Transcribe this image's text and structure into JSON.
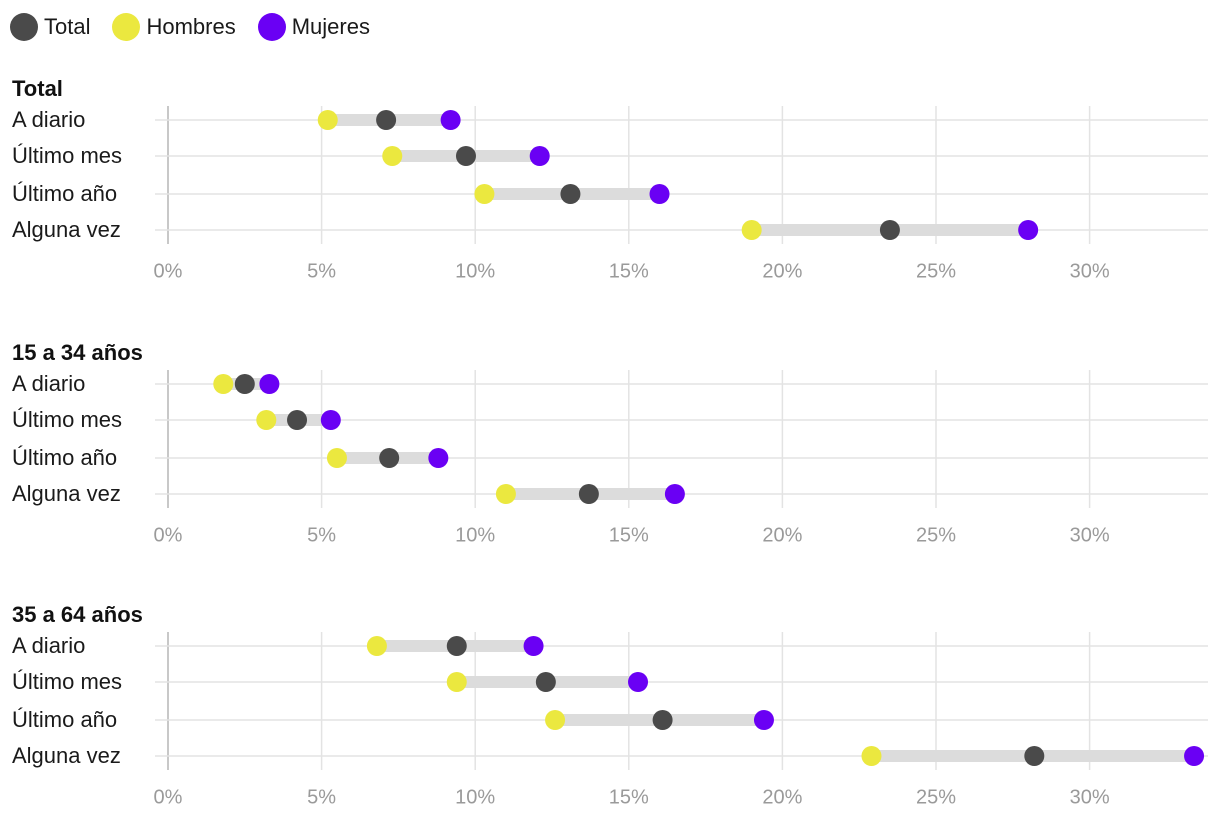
{
  "legend": [
    {
      "label": "Total",
      "color": "#4a4a4a"
    },
    {
      "label": "Hombres",
      "color": "#ebe83f"
    },
    {
      "label": "Mujeres",
      "color": "#6a00f4"
    }
  ],
  "chart_data": {
    "type": "dumbbell",
    "series": [
      {
        "name": "Total",
        "color": "#4a4a4a"
      },
      {
        "name": "Hombres",
        "color": "#ebe83f"
      },
      {
        "name": "Mujeres",
        "color": "#6a00f4"
      }
    ],
    "x_ticks": [
      "0%",
      "5%",
      "10%",
      "15%",
      "20%",
      "25%",
      "30%"
    ],
    "x_range": [
      0,
      33.5
    ],
    "grid": true,
    "legend_position": "top-left",
    "panels": [
      {
        "title": "Total",
        "categories": [
          "A diario",
          "Último mes",
          "Último año",
          "Alguna vez"
        ],
        "Total": [
          7.1,
          9.7,
          13.1,
          23.5
        ],
        "Hombres": [
          5.2,
          7.3,
          10.3,
          19.0
        ],
        "Mujeres": [
          9.2,
          12.1,
          16.0,
          28.0
        ]
      },
      {
        "title": "15 a 34 años",
        "categories": [
          "A diario",
          "Último mes",
          "Último año",
          "Alguna vez"
        ],
        "Total": [
          2.5,
          4.2,
          7.2,
          13.7
        ],
        "Hombres": [
          1.8,
          3.2,
          5.5,
          11.0
        ],
        "Mujeres": [
          3.3,
          5.3,
          8.8,
          16.5
        ]
      },
      {
        "title": "35 a 64 años",
        "categories": [
          "A diario",
          "Último mes",
          "Último año",
          "Alguna vez"
        ],
        "Total": [
          9.4,
          12.3,
          16.1,
          28.2
        ],
        "Hombres": [
          6.8,
          9.4,
          12.6,
          22.9
        ],
        "Mujeres": [
          11.9,
          15.3,
          19.4,
          33.4
        ]
      }
    ]
  }
}
